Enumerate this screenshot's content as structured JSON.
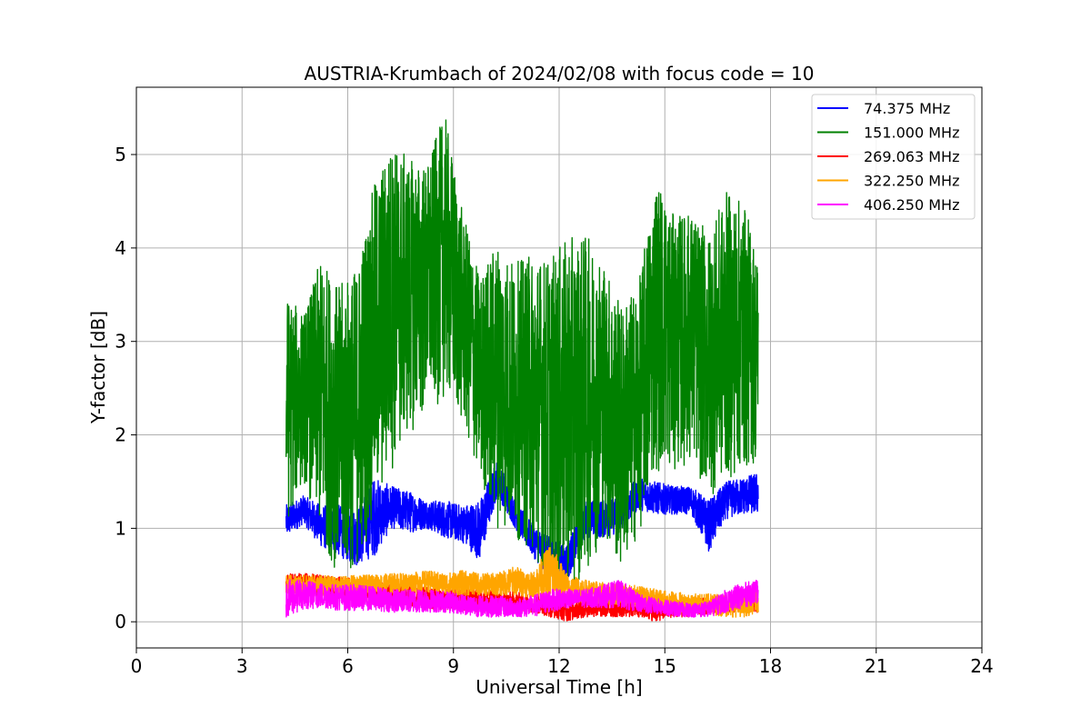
{
  "chart_data": {
    "type": "line",
    "title": "AUSTRIA-Krumbach of 2024/02/08 with focus code = 10",
    "xlabel": "Universal Time [h]",
    "ylabel": "Y-factor [dB]",
    "xlim": [
      0,
      24
    ],
    "ylim": [
      -0.28,
      5.72
    ],
    "xticks": [
      0,
      3,
      6,
      9,
      12,
      15,
      18,
      21,
      24
    ],
    "yticks": [
      0,
      1,
      2,
      3,
      4,
      5
    ],
    "grid": true,
    "legend_position": "top-right",
    "series": [
      {
        "name": " 74.375 MHz",
        "color": "#0000ff",
        "x": [
          4.25,
          4.75,
          5.25,
          5.75,
          6.25,
          6.75,
          7.25,
          7.75,
          8.25,
          8.75,
          9.25,
          9.75,
          10.25,
          10.75,
          11.25,
          11.75,
          12.25,
          12.75,
          13.25,
          13.75,
          14.25,
          14.75,
          15.25,
          15.75,
          16.25,
          16.75,
          17.25,
          17.65
        ],
        "min": [
          0.9,
          1.05,
          0.8,
          0.7,
          0.6,
          0.7,
          1.0,
          0.95,
          1.0,
          0.9,
          0.85,
          0.65,
          1.35,
          1.0,
          0.7,
          0.45,
          0.45,
          0.9,
          0.9,
          0.95,
          1.2,
          1.15,
          1.15,
          1.15,
          0.75,
          1.1,
          1.15,
          1.15
        ],
        "max": [
          1.25,
          1.35,
          1.25,
          1.25,
          1.2,
          1.55,
          1.45,
          1.4,
          1.3,
          1.3,
          1.25,
          1.3,
          1.75,
          1.3,
          1.05,
          0.9,
          0.85,
          1.3,
          1.3,
          1.35,
          1.55,
          1.5,
          1.45,
          1.45,
          1.3,
          1.5,
          1.55,
          1.6
        ]
      },
      {
        "name": "151.000 MHz",
        "color": "#008000",
        "x": [
          4.25,
          4.75,
          5.25,
          5.75,
          6.25,
          6.75,
          7.25,
          7.75,
          8.25,
          8.75,
          9.25,
          9.75,
          10.25,
          10.75,
          11.25,
          11.75,
          12.25,
          12.75,
          13.25,
          13.75,
          14.25,
          14.75,
          15.25,
          15.75,
          16.25,
          16.75,
          17.25,
          17.65
        ],
        "min": [
          1.0,
          1.5,
          0.9,
          0.45,
          0.55,
          1.1,
          1.6,
          2.0,
          2.2,
          2.4,
          2.1,
          1.5,
          1.0,
          0.9,
          0.7,
          0.45,
          0.3,
          0.5,
          0.9,
          0.5,
          0.9,
          1.6,
          1.6,
          1.7,
          1.3,
          1.5,
          1.6,
          1.7
        ],
        "max": [
          3.5,
          3.3,
          3.9,
          3.6,
          3.8,
          4.7,
          5.15,
          4.95,
          4.9,
          5.45,
          4.4,
          3.7,
          4.1,
          3.85,
          3.95,
          3.9,
          4.1,
          4.15,
          3.9,
          3.4,
          3.6,
          4.8,
          4.35,
          4.4,
          4.15,
          4.6,
          4.5,
          3.9
        ]
      },
      {
        "name": "269.063 MHz",
        "color": "#ff0000",
        "x": [
          4.25,
          4.75,
          5.25,
          5.75,
          6.25,
          6.75,
          7.25,
          7.75,
          8.25,
          8.75,
          9.25,
          9.75,
          10.25,
          10.75,
          11.25,
          11.75,
          12.25,
          12.75,
          13.25,
          13.75,
          14.25,
          14.75,
          15.25,
          15.75,
          16.25,
          16.75,
          17.25,
          17.65
        ],
        "min": [
          0.3,
          0.3,
          0.25,
          0.25,
          0.22,
          0.2,
          0.18,
          0.16,
          0.14,
          0.13,
          0.12,
          0.1,
          0.1,
          0.1,
          0.1,
          0.05,
          0.0,
          0.05,
          0.05,
          0.05,
          0.05,
          0.0,
          0.05,
          0.05,
          0.08,
          0.1,
          0.1,
          0.1
        ],
        "max": [
          0.52,
          0.52,
          0.5,
          0.48,
          0.46,
          0.44,
          0.42,
          0.4,
          0.38,
          0.36,
          0.35,
          0.34,
          0.33,
          0.32,
          0.3,
          0.28,
          0.26,
          0.25,
          0.25,
          0.24,
          0.24,
          0.22,
          0.24,
          0.25,
          0.26,
          0.28,
          0.3,
          0.3
        ]
      },
      {
        "name": "322.250 MHz",
        "color": "#ffa500",
        "x": [
          4.25,
          4.75,
          5.25,
          5.75,
          6.25,
          6.75,
          7.25,
          7.75,
          8.25,
          8.75,
          9.25,
          9.75,
          10.25,
          10.75,
          11.25,
          11.75,
          12.25,
          12.75,
          13.25,
          13.75,
          14.25,
          14.75,
          15.25,
          15.75,
          16.25,
          16.75,
          17.25,
          17.65
        ],
        "min": [
          0.3,
          0.28,
          0.28,
          0.3,
          0.3,
          0.32,
          0.3,
          0.32,
          0.32,
          0.3,
          0.28,
          0.28,
          0.28,
          0.28,
          0.26,
          0.22,
          0.22,
          0.2,
          0.18,
          0.18,
          0.16,
          0.14,
          0.12,
          0.1,
          0.08,
          0.05,
          0.05,
          0.1
        ],
        "max": [
          0.5,
          0.5,
          0.5,
          0.48,
          0.5,
          0.5,
          0.52,
          0.52,
          0.55,
          0.52,
          0.55,
          0.52,
          0.52,
          0.6,
          0.52,
          0.85,
          0.5,
          0.45,
          0.42,
          0.42,
          0.38,
          0.35,
          0.32,
          0.3,
          0.3,
          0.3,
          0.3,
          0.35
        ]
      },
      {
        "name": "406.250 MHz",
        "color": "#ff00ff",
        "x": [
          4.25,
          4.75,
          5.25,
          5.75,
          6.25,
          6.75,
          7.25,
          7.75,
          8.25,
          8.75,
          9.25,
          9.75,
          10.25,
          10.75,
          11.25,
          11.75,
          12.25,
          12.75,
          13.25,
          13.75,
          14.25,
          14.75,
          15.25,
          15.75,
          16.25,
          16.75,
          17.25,
          17.65
        ],
        "min": [
          0.05,
          0.12,
          0.15,
          0.12,
          0.12,
          0.12,
          0.1,
          0.1,
          0.1,
          0.1,
          0.08,
          0.05,
          0.05,
          0.05,
          0.05,
          0.1,
          0.15,
          0.15,
          0.15,
          0.15,
          0.1,
          0.08,
          0.05,
          0.05,
          0.05,
          0.1,
          0.15,
          0.2
        ],
        "max": [
          0.45,
          0.45,
          0.42,
          0.4,
          0.4,
          0.38,
          0.35,
          0.35,
          0.35,
          0.33,
          0.3,
          0.28,
          0.28,
          0.25,
          0.28,
          0.35,
          0.35,
          0.35,
          0.4,
          0.45,
          0.3,
          0.25,
          0.22,
          0.2,
          0.22,
          0.35,
          0.42,
          0.45
        ]
      }
    ]
  }
}
